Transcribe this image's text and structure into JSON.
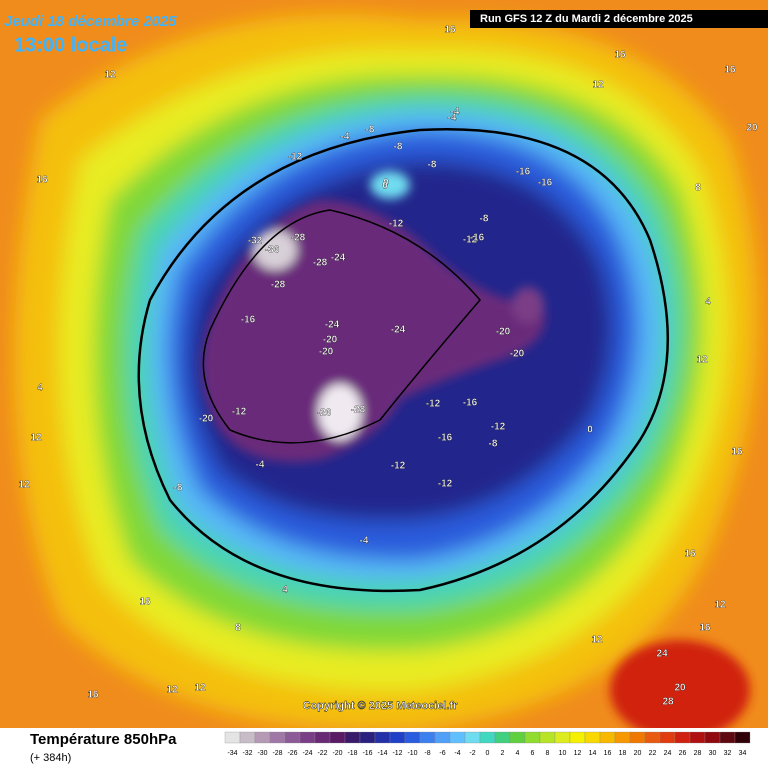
{
  "header": {
    "date": "Jeudi 18 décembre 2025",
    "time": "13:00 locale",
    "run": "Run GFS 12 Z du Mardi 2 décembre 2025"
  },
  "footer": {
    "title": "Température 850hPa",
    "lead": "(+ 384h)",
    "copyright": "Copyright © 2025 Meteociel.fr"
  },
  "legend": {
    "values": [
      -34,
      -32,
      -30,
      -28,
      -26,
      -24,
      -22,
      -20,
      -18,
      -16,
      -14,
      -12,
      -10,
      -8,
      -6,
      -4,
      -2,
      0,
      2,
      4,
      6,
      8,
      10,
      12,
      14,
      16,
      18,
      20,
      22,
      24,
      26,
      28,
      30,
      32,
      34
    ],
    "colors": [
      "#e4e4e4",
      "#c8bcc8",
      "#b49ab4",
      "#a078a8",
      "#8c5a96",
      "#7a3e86",
      "#682a74",
      "#5a1a66",
      "#3a1a6a",
      "#2a2080",
      "#2430a8",
      "#2040c8",
      "#2a5ce0",
      "#3c80f0",
      "#50a0f8",
      "#60c0ff",
      "#70dcf0",
      "#40d8c0",
      "#40d080",
      "#60d040",
      "#90dc30",
      "#b8e428",
      "#dcec20",
      "#f4f000",
      "#f8d800",
      "#f8b800",
      "#f89800",
      "#f07800",
      "#e85a10",
      "#e03c10",
      "#d02010",
      "#b01010",
      "#900810",
      "#600810",
      "#300008"
    ]
  },
  "map": {
    "contour_labels": [
      -12,
      -8,
      -4,
      -8,
      -16,
      -16,
      -12,
      -8,
      -4,
      0,
      -8,
      -12,
      -16,
      -32,
      -36,
      -28,
      -28,
      -24,
      -28,
      -16,
      -24,
      -24,
      -20,
      -20,
      -20,
      -12,
      -20,
      -12,
      -16,
      -20,
      -26,
      -28,
      -12,
      -12,
      -16,
      -12,
      -8,
      -4,
      -8,
      -4,
      -4,
      0,
      4,
      8,
      12,
      16,
      16,
      12,
      12,
      4,
      12,
      16,
      24,
      28,
      20,
      16,
      12,
      12,
      16,
      16,
      20,
      8,
      0,
      4,
      12,
      16,
      16,
      20,
      12,
      12,
      16
    ]
  }
}
